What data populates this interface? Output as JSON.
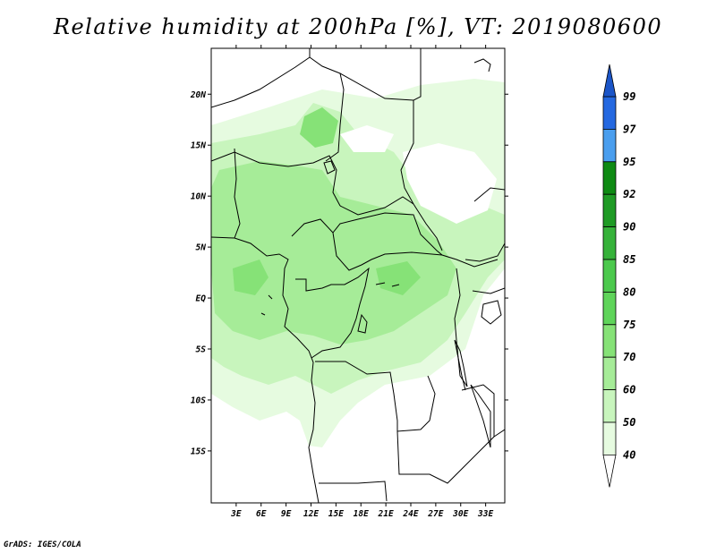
{
  "title": "Relative humidity at 200hPa [%], VT: 2019080600",
  "credit": "GrADS: IGES/COLA",
  "map": {
    "lat_labels": [
      "20N",
      "15N",
      "10N",
      "5N",
      "EQ",
      "5S",
      "10S",
      "15S"
    ],
    "lat_values": [
      20,
      15,
      10,
      5,
      0,
      -5,
      -10,
      -15
    ],
    "lon_labels": [
      "3E",
      "6E",
      "9E",
      "12E",
      "15E",
      "18E",
      "21E",
      "24E",
      "27E",
      "30E",
      "33E"
    ],
    "lon_values": [
      3,
      6,
      9,
      12,
      15,
      18,
      21,
      24,
      27,
      30,
      33
    ]
  },
  "colorbar": {
    "levels": [
      "99",
      "97",
      "95",
      "92",
      "90",
      "85",
      "80",
      "75",
      "70",
      "60",
      "50",
      "40"
    ],
    "colors": [
      "#ffffff",
      "#e6fbe0",
      "#c8f5bd",
      "#a6ec98",
      "#86e277",
      "#5fd45a",
      "#4cc94d",
      "#36b23a",
      "#1f9b25",
      "#0e8a13",
      "#4a9eee",
      "#2468e0",
      "#1b55c8"
    ]
  }
}
